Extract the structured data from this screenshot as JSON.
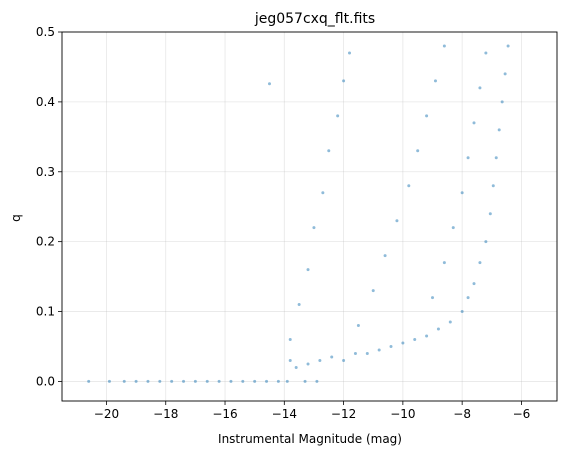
{
  "chart_data": {
    "type": "scatter",
    "title": "jeg057cxq_flt.fits",
    "xlabel": "Instrumental Magnitude (mag)",
    "ylabel": "q",
    "xlim": [
      -21.5,
      -4.8
    ],
    "ylim": [
      -0.028,
      0.5
    ],
    "xticks": [
      -20,
      -18,
      -16,
      -14,
      -12,
      -10,
      -8,
      -6
    ],
    "xtick_labels": [
      "−20",
      "−18",
      "−16",
      "−14",
      "−12",
      "−10",
      "−8",
      "−6"
    ],
    "yticks": [
      0.0,
      0.1,
      0.2,
      0.3,
      0.4,
      0.5
    ],
    "ytick_labels": [
      "0.0",
      "0.1",
      "0.2",
      "0.3",
      "0.4",
      "0.5"
    ],
    "grid": true,
    "legend": false,
    "point_color": "#1f77b4",
    "point_alpha": 0.5,
    "series": [
      {
        "points": [
          [
            -20.6,
            0.0
          ],
          [
            -19.9,
            0.0
          ],
          [
            -19.4,
            0.0
          ],
          [
            -19.0,
            0.0
          ],
          [
            -18.6,
            0.0
          ],
          [
            -18.2,
            0.0
          ],
          [
            -17.8,
            0.0
          ],
          [
            -17.4,
            0.0
          ],
          [
            -17.0,
            0.0
          ],
          [
            -16.6,
            0.0
          ],
          [
            -16.2,
            0.0
          ],
          [
            -15.8,
            0.0
          ],
          [
            -15.4,
            0.0
          ],
          [
            -15.0,
            0.0
          ],
          [
            -14.6,
            0.0
          ],
          [
            -14.2,
            0.0
          ],
          [
            -13.9,
            0.0
          ],
          [
            -13.3,
            0.0
          ],
          [
            -12.9,
            0.0
          ],
          [
            -14.5,
            0.426
          ],
          [
            -13.8,
            0.03
          ],
          [
            -13.6,
            0.02
          ],
          [
            -13.2,
            0.025
          ],
          [
            -12.8,
            0.03
          ],
          [
            -12.4,
            0.035
          ],
          [
            -12.0,
            0.03
          ],
          [
            -11.6,
            0.04
          ],
          [
            -11.2,
            0.04
          ],
          [
            -10.8,
            0.045
          ],
          [
            -10.4,
            0.05
          ],
          [
            -10.0,
            0.055
          ],
          [
            -9.6,
            0.06
          ],
          [
            -9.2,
            0.065
          ],
          [
            -8.8,
            0.075
          ],
          [
            -8.4,
            0.085
          ],
          [
            -8.0,
            0.1
          ],
          [
            -7.8,
            0.12
          ],
          [
            -7.6,
            0.14
          ],
          [
            -7.4,
            0.17
          ],
          [
            -7.2,
            0.2
          ],
          [
            -7.05,
            0.24
          ],
          [
            -6.95,
            0.28
          ],
          [
            -6.85,
            0.32
          ],
          [
            -6.75,
            0.36
          ],
          [
            -6.65,
            0.4
          ],
          [
            -6.55,
            0.44
          ],
          [
            -6.45,
            0.48
          ],
          [
            -13.8,
            0.06
          ],
          [
            -13.5,
            0.11
          ],
          [
            -13.2,
            0.16
          ],
          [
            -13.0,
            0.22
          ],
          [
            -12.7,
            0.27
          ],
          [
            -12.5,
            0.33
          ],
          [
            -12.2,
            0.38
          ],
          [
            -12.0,
            0.43
          ],
          [
            -11.8,
            0.47
          ],
          [
            -11.5,
            0.08
          ],
          [
            -11.0,
            0.13
          ],
          [
            -10.6,
            0.18
          ],
          [
            -10.2,
            0.23
          ],
          [
            -9.8,
            0.28
          ],
          [
            -9.5,
            0.33
          ],
          [
            -9.2,
            0.38
          ],
          [
            -8.9,
            0.43
          ],
          [
            -8.6,
            0.48
          ],
          [
            -9.0,
            0.12
          ],
          [
            -8.6,
            0.17
          ],
          [
            -8.3,
            0.22
          ],
          [
            -8.0,
            0.27
          ],
          [
            -7.8,
            0.32
          ],
          [
            -7.6,
            0.37
          ],
          [
            -7.4,
            0.42
          ],
          [
            -7.2,
            0.47
          ]
        ]
      }
    ]
  }
}
